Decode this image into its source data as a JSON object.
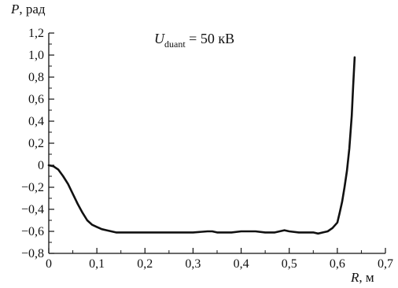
{
  "chart_data": {
    "type": "line",
    "ylabel": {
      "symbol": "P",
      "unit": ", рад"
    },
    "xlabel": {
      "symbol": "R",
      "unit": ", м"
    },
    "annotation": {
      "base": "U",
      "sub": "duant",
      "rest": " = 50 кВ"
    },
    "xlim": [
      0,
      0.7
    ],
    "ylim": [
      -0.8,
      1.2
    ],
    "x_ticks": [
      "0",
      "0,1",
      "0,2",
      "0,3",
      "0,4",
      "0,5",
      "0,6",
      "0,7"
    ],
    "y_ticks": [
      "1,2",
      "1,0",
      "0,8",
      "0,6",
      "0,4",
      "0,2",
      "0",
      "−0,2",
      "−0,4",
      "−0,6",
      "−0,8"
    ],
    "grid": false,
    "series": [
      {
        "x": [
          0,
          0.01,
          0.02,
          0.03,
          0.04,
          0.05,
          0.06,
          0.07,
          0.08,
          0.09,
          0.1,
          0.11,
          0.12,
          0.13,
          0.14,
          0.15,
          0.2,
          0.25,
          0.3,
          0.33,
          0.34,
          0.35,
          0.36,
          0.38,
          0.4,
          0.43,
          0.45,
          0.47,
          0.48,
          0.49,
          0.5,
          0.52,
          0.55,
          0.56,
          0.57,
          0.58,
          0.59,
          0.6,
          0.605,
          0.61,
          0.615,
          0.62,
          0.625,
          0.63,
          0.633,
          0.636
        ],
        "y": [
          0,
          -0.01,
          -0.04,
          -0.1,
          -0.17,
          -0.26,
          -0.35,
          -0.43,
          -0.5,
          -0.54,
          -0.56,
          -0.58,
          -0.59,
          -0.6,
          -0.61,
          -0.61,
          -0.61,
          -0.61,
          -0.61,
          -0.6,
          -0.6,
          -0.61,
          -0.61,
          -0.61,
          -0.6,
          -0.6,
          -0.61,
          -0.61,
          -0.6,
          -0.59,
          -0.6,
          -0.61,
          -0.61,
          -0.62,
          -0.61,
          -0.6,
          -0.57,
          -0.52,
          -0.43,
          -0.33,
          -0.2,
          -0.05,
          0.15,
          0.45,
          0.72,
          0.98
        ]
      }
    ]
  }
}
